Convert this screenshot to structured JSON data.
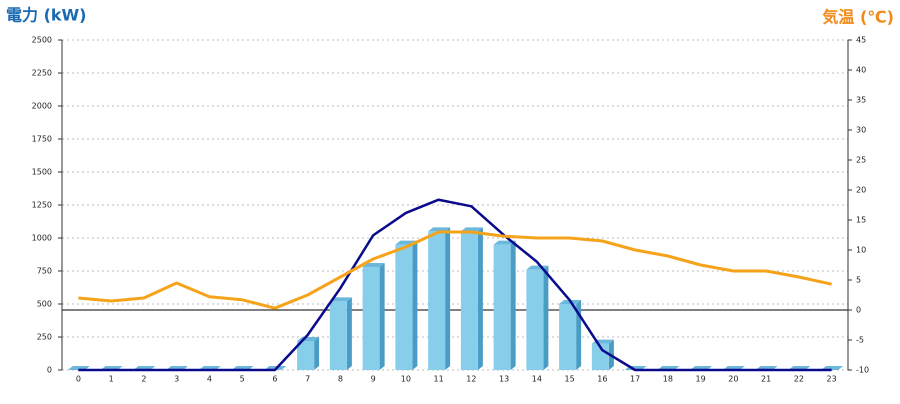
{
  "chart_data": {
    "type": "bar",
    "y_label": "電力 (kW)",
    "y2_label": "気温 (℃)",
    "categories": [
      "0",
      "1",
      "2",
      "3",
      "4",
      "5",
      "6",
      "7",
      "8",
      "9",
      "10",
      "11",
      "12",
      "13",
      "14",
      "15",
      "16",
      "17",
      "18",
      "19",
      "20",
      "21",
      "22",
      "23"
    ],
    "series": [
      {
        "color": "#87ceeb",
        "values": [
          0,
          0,
          0,
          0,
          0,
          0,
          0,
          220,
          520,
          780,
          950,
          1050,
          1050,
          950,
          760,
          500,
          200,
          0,
          0,
          0,
          0,
          0,
          0,
          0
        ]
      },
      {
        "color": "#0a0a8c",
        "line": true,
        "values": [
          0,
          0,
          0,
          0,
          0,
          0,
          0,
          265,
          620,
          1020,
          1190,
          1290,
          1240,
          1020,
          820,
          530,
          150,
          0,
          0,
          0,
          0,
          0,
          0,
          0
        ]
      },
      {
        "color": "#f5a31a",
        "line": true,
        "axis": "y2",
        "values": [
          2,
          1.5,
          2,
          4.5,
          2.2,
          1.7,
          0.3,
          2.5,
          5.5,
          8.5,
          10.5,
          13,
          13,
          12.3,
          12,
          12,
          11.5,
          10,
          9,
          7.5,
          6.5,
          6.5,
          5.5,
          4.3
        ]
      }
    ],
    "ylim": [
      0,
      2500
    ],
    "yticks": [
      0,
      250,
      500,
      750,
      1000,
      1250,
      1500,
      1750,
      2000,
      2250,
      2500
    ],
    "y2lim": [
      -10,
      45
    ],
    "y2ticks": [
      -10,
      -5,
      0,
      5,
      10,
      15,
      20,
      25,
      30,
      35,
      40,
      45
    ],
    "grid": true
  }
}
